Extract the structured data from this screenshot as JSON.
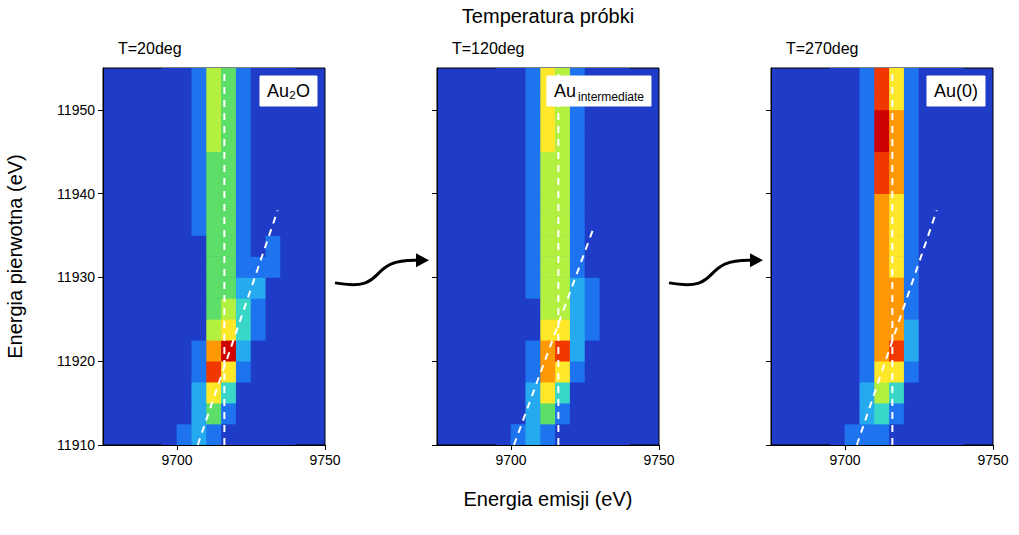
{
  "figure": {
    "title": "Temperatura próbki",
    "xlabel": "Energia emisji (eV)",
    "ylabel": "Energia pierwotna (eV)"
  },
  "chart_data": [
    {
      "type": "heatmap",
      "title": "T=20deg",
      "annotation": "Au₂O",
      "xlim": [
        9675,
        9750
      ],
      "xticks": [
        9700,
        9750
      ],
      "ylim": [
        11910,
        11955
      ],
      "yticks": [
        11910,
        11920,
        11930,
        11940,
        11950
      ],
      "grid": false,
      "heatmap": {
        "zlim": [
          0,
          10
        ],
        "x_edges": [
          9695,
          9700,
          9705,
          9710,
          9715,
          9720,
          9725,
          9730,
          9735,
          9740
        ],
        "y_edges": [
          11910,
          11912.5,
          11915,
          11917.5,
          11920,
          11922.5,
          11925,
          11927.5,
          11930,
          11932.5,
          11935,
          11937.5,
          11940,
          11942.5,
          11945,
          11947.5,
          11950,
          11952.5,
          11955
        ],
        "z": [
          [
            0,
            1,
            2,
            1,
            0,
            0,
            0,
            0,
            0
          ],
          [
            0,
            0,
            2,
            4,
            1,
            0,
            0,
            0,
            0
          ],
          [
            0,
            0,
            2,
            6,
            3,
            0,
            0,
            0,
            0
          ],
          [
            0,
            0,
            1,
            8,
            6,
            1,
            0,
            0,
            0
          ],
          [
            0,
            0,
            1,
            7,
            9,
            2,
            0,
            0,
            0
          ],
          [
            0,
            0,
            0,
            5,
            6,
            3,
            1,
            0,
            0
          ],
          [
            0,
            0,
            0,
            4,
            5,
            3,
            1,
            0,
            0
          ],
          [
            0,
            0,
            0,
            4,
            4,
            2,
            2,
            0,
            0
          ],
          [
            0,
            0,
            0,
            4,
            4,
            1,
            1,
            1,
            0
          ],
          [
            0,
            0,
            0,
            4,
            4,
            1,
            0,
            1,
            0
          ],
          [
            0,
            0,
            1,
            4,
            4,
            1,
            0,
            0,
            0
          ],
          [
            0,
            0,
            1,
            4,
            4,
            1,
            0,
            0,
            0
          ],
          [
            0,
            0,
            1,
            4,
            4,
            1,
            0,
            0,
            0
          ],
          [
            0,
            0,
            1,
            4,
            4,
            1,
            0,
            0,
            0
          ],
          [
            0,
            0,
            1,
            5,
            4,
            1,
            0,
            0,
            0
          ],
          [
            0,
            0,
            1,
            5,
            4,
            1,
            0,
            0,
            0
          ],
          [
            0,
            0,
            1,
            5,
            4,
            1,
            0,
            0,
            0
          ],
          [
            0,
            0,
            1,
            5,
            4,
            1,
            0,
            0,
            0
          ]
        ]
      },
      "lines": [
        {
          "x": [
            9716,
            9716
          ],
          "y": [
            11910,
            11955
          ],
          "line_style": "dashed",
          "color": "#ffffff"
        },
        {
          "x": [
            9707,
            9734
          ],
          "y": [
            11910,
            11938
          ],
          "line_style": "dashed",
          "color": "#ffffff"
        }
      ]
    },
    {
      "type": "heatmap",
      "title": "T=120deg",
      "annotation": "Au intermediate",
      "xlim": [
        9675,
        9750
      ],
      "xticks": [
        9700,
        9750
      ],
      "ylim": [
        11910,
        11955
      ],
      "yticks": [
        11910,
        11920,
        11930,
        11940,
        11950
      ],
      "grid": false,
      "tick_labels": "x",
      "heatmap": {
        "zlim": [
          0,
          10
        ],
        "x_edges": [
          9695,
          9700,
          9705,
          9710,
          9715,
          9720,
          9725,
          9730,
          9735,
          9740
        ],
        "y_edges": [
          11910,
          11912.5,
          11915,
          11917.5,
          11920,
          11922.5,
          11925,
          11927.5,
          11930,
          11932.5,
          11935,
          11937.5,
          11940,
          11942.5,
          11945,
          11947.5,
          11950,
          11952.5,
          11955
        ],
        "z": [
          [
            0,
            1,
            2,
            1,
            0,
            0,
            0,
            0,
            0
          ],
          [
            0,
            0,
            2,
            4,
            1,
            0,
            0,
            0,
            0
          ],
          [
            0,
            0,
            2,
            6,
            3,
            0,
            0,
            0,
            0
          ],
          [
            0,
            0,
            1,
            7,
            6,
            1,
            0,
            0,
            0
          ],
          [
            0,
            0,
            1,
            7,
            8,
            2,
            0,
            0,
            0
          ],
          [
            0,
            0,
            0,
            6,
            6,
            2,
            1,
            0,
            0
          ],
          [
            0,
            0,
            0,
            5,
            5,
            2,
            1,
            0,
            0
          ],
          [
            0,
            0,
            1,
            5,
            5,
            2,
            1,
            0,
            0
          ],
          [
            0,
            0,
            1,
            5,
            5,
            1,
            0,
            0,
            0
          ],
          [
            0,
            0,
            1,
            5,
            5,
            1,
            0,
            0,
            0
          ],
          [
            0,
            0,
            1,
            5,
            5,
            1,
            0,
            0,
            0
          ],
          [
            0,
            0,
            1,
            5,
            5,
            1,
            0,
            0,
            0
          ],
          [
            0,
            0,
            1,
            5,
            5,
            1,
            0,
            0,
            0
          ],
          [
            0,
            0,
            1,
            5,
            5,
            1,
            0,
            0,
            0
          ],
          [
            0,
            0,
            1,
            6,
            5,
            1,
            0,
            0,
            0
          ],
          [
            0,
            0,
            1,
            6,
            5,
            1,
            0,
            0,
            0
          ],
          [
            0,
            0,
            1,
            6,
            5,
            1,
            0,
            0,
            0
          ],
          [
            0,
            0,
            1,
            6,
            5,
            1,
            0,
            0,
            0
          ]
        ]
      },
      "lines": [
        {
          "x": [
            9716,
            9716
          ],
          "y": [
            11910,
            11955
          ],
          "line_style": "dashed",
          "color": "#ffffff"
        },
        {
          "x": [
            9701,
            9728
          ],
          "y": [
            11910,
            11936
          ],
          "line_style": "dashed",
          "color": "#ffffff"
        }
      ]
    },
    {
      "type": "heatmap",
      "title": "T=270deg",
      "annotation": "Au(0)",
      "xlim": [
        9675,
        9750
      ],
      "xticks": [
        9700,
        9750
      ],
      "ylim": [
        11910,
        11955
      ],
      "yticks": [
        11910,
        11920,
        11930,
        11940,
        11950
      ],
      "grid": false,
      "tick_labels": "x",
      "heatmap": {
        "zlim": [
          0,
          10
        ],
        "x_edges": [
          9695,
          9700,
          9705,
          9710,
          9715,
          9720,
          9725,
          9730,
          9735,
          9740
        ],
        "y_edges": [
          11910,
          11912.5,
          11915,
          11917.5,
          11920,
          11922.5,
          11925,
          11927.5,
          11930,
          11932.5,
          11935,
          11937.5,
          11940,
          11942.5,
          11945,
          11947.5,
          11950,
          11952.5,
          11955
        ],
        "z": [
          [
            0,
            1,
            1,
            1,
            0,
            0,
            0,
            0,
            0
          ],
          [
            0,
            0,
            2,
            3,
            1,
            0,
            0,
            0,
            0
          ],
          [
            0,
            0,
            2,
            5,
            3,
            0,
            0,
            0,
            0
          ],
          [
            0,
            0,
            1,
            6,
            6,
            1,
            0,
            0,
            0
          ],
          [
            0,
            0,
            1,
            7,
            8,
            2,
            0,
            0,
            0
          ],
          [
            0,
            0,
            1,
            7,
            7,
            2,
            0,
            0,
            0
          ],
          [
            0,
            0,
            1,
            7,
            7,
            1,
            0,
            0,
            0
          ],
          [
            0,
            0,
            1,
            7,
            7,
            1,
            0,
            0,
            0
          ],
          [
            0,
            0,
            1,
            7,
            6,
            1,
            0,
            0,
            0
          ],
          [
            0,
            0,
            1,
            7,
            6,
            1,
            0,
            0,
            0
          ],
          [
            0,
            0,
            1,
            7,
            6,
            1,
            0,
            0,
            0
          ],
          [
            0,
            0,
            1,
            7,
            6,
            1,
            0,
            0,
            0
          ],
          [
            0,
            0,
            1,
            8,
            7,
            1,
            0,
            0,
            0
          ],
          [
            0,
            0,
            1,
            8,
            7,
            1,
            0,
            0,
            0
          ],
          [
            0,
            0,
            1,
            9,
            7,
            1,
            0,
            0,
            0
          ],
          [
            0,
            0,
            1,
            9,
            7,
            1,
            0,
            0,
            0
          ],
          [
            0,
            0,
            1,
            8,
            6,
            1,
            0,
            0,
            0
          ],
          [
            0,
            0,
            1,
            8,
            6,
            1,
            0,
            0,
            0
          ]
        ]
      },
      "lines": [
        {
          "x": [
            9716,
            9716
          ],
          "y": [
            11910,
            11955
          ],
          "line_style": "dashed",
          "color": "#ffffff"
        },
        {
          "x": [
            9704,
            9731
          ],
          "y": [
            11910,
            11938
          ],
          "line_style": "dashed",
          "color": "#ffffff"
        }
      ]
    }
  ]
}
